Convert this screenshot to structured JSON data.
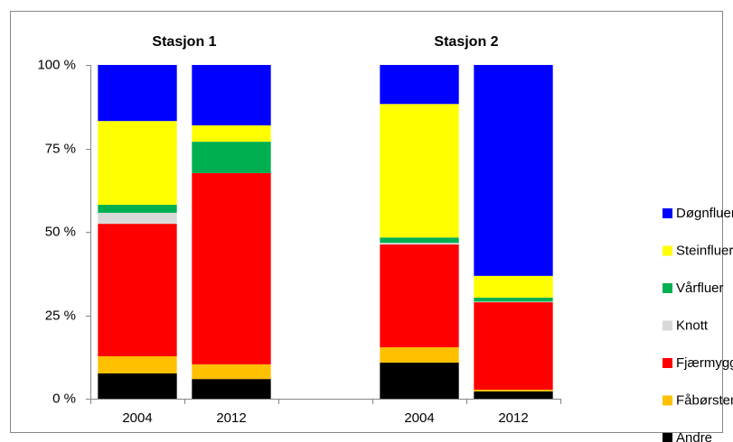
{
  "chart_data": {
    "type": "stacked_bar",
    "group_titles": [
      "Stasjon 1",
      "Stasjon 2"
    ],
    "categories": [
      "2004",
      "2012",
      null,
      "2004",
      "2012"
    ],
    "series": [
      {
        "name": "Andre",
        "color": "#000000",
        "values": [
          7.6,
          5.9,
          null,
          10.8,
          2.2
        ]
      },
      {
        "name": "Fåbørstemark",
        "color": "#ffc000",
        "values": [
          5.1,
          4.4,
          null,
          4.6,
          0.5
        ]
      },
      {
        "name": "Fjærmygg",
        "color": "#ff0000",
        "values": [
          39.7,
          57.3,
          null,
          30.8,
          26.2
        ]
      },
      {
        "name": "Knott",
        "color": "#d9d9d9",
        "values": [
          3.3,
          0,
          null,
          0.5,
          0.2
        ]
      },
      {
        "name": "Vårfluer",
        "color": "#00b050",
        "values": [
          2.4,
          9.4,
          null,
          1.6,
          1.2
        ]
      },
      {
        "name": "Steinfluer",
        "color": "#ffff00",
        "values": [
          25.1,
          4.9,
          null,
          40.0,
          6.5
        ]
      },
      {
        "name": "Døgnfluer",
        "color": "#0000ff",
        "values": [
          16.8,
          18.1,
          null,
          11.7,
          63.2
        ]
      }
    ],
    "ylim": [
      0,
      100
    ],
    "yticks": [
      {
        "value": 0,
        "label": "0 %"
      },
      {
        "value": 25,
        "label": "25 %"
      },
      {
        "value": 50,
        "label": "50 %"
      },
      {
        "value": 75,
        "label": "75 %"
      },
      {
        "value": 100,
        "label": "100 %"
      }
    ],
    "grid": false,
    "legend": "right"
  }
}
